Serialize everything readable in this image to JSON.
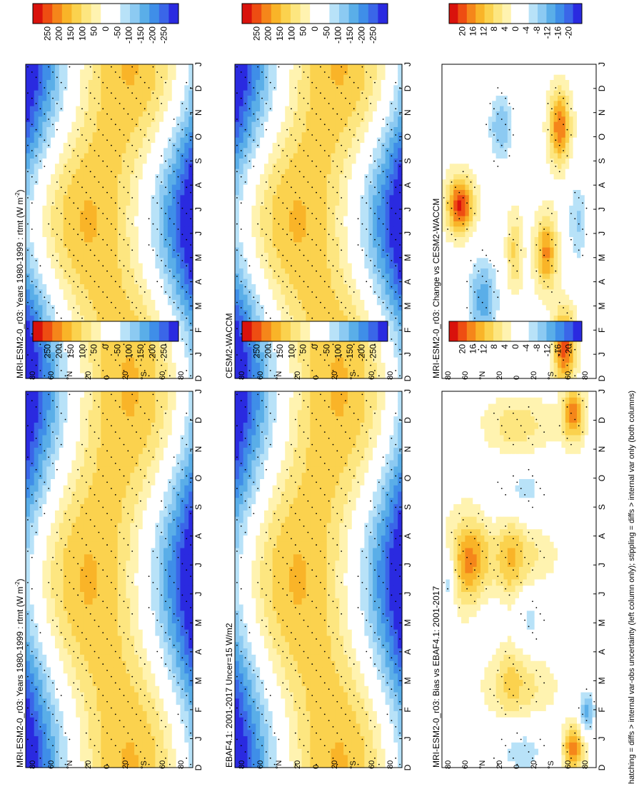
{
  "footer_note": "hatching = diffs > internal var-obs uncertainty (left column only); stippling = diffs > internal var only (both columns)",
  "colors": {
    "full_scale": [
      "#2a2ae0",
      "#3a66e8",
      "#3f8ee8",
      "#5aaee8",
      "#8ccaf2",
      "#b8e2f8",
      "#ffffff",
      "#ffffff",
      "#fff3b0",
      "#fde680",
      "#fbd24e",
      "#f9b428",
      "#f5861a",
      "#ee4d12",
      "#d9120c"
    ],
    "delta_scale": [
      "#2a2ae0",
      "#3a66e8",
      "#3f8ee8",
      "#5aaee8",
      "#8ccaf2",
      "#b8e2f8",
      "#ffffff",
      "#ffffff",
      "#fff3b0",
      "#fde680",
      "#fbd24e",
      "#f9b428",
      "#f5861a",
      "#ee4d12",
      "#d9120c"
    ]
  },
  "axis_labels": {
    "months": [
      "D",
      "J",
      "F",
      "M",
      "A",
      "M",
      "J",
      "J",
      "A",
      "S",
      "O",
      "N",
      "D",
      "J"
    ],
    "latitudes": [
      "80",
      "60",
      "°N",
      "20",
      "0",
      "20",
      "°S",
      "60",
      "80"
    ]
  },
  "chart_data": [
    {
      "type": "heatmap",
      "title": "MRI-ESM2-0_r03: Years 1980-1999 : rtmt (W m",
      "title_sup": "-2",
      "title_end": ")",
      "x": [
        "D",
        "J",
        "F",
        "M",
        "A",
        "M",
        "J",
        "J",
        "A",
        "S",
        "O",
        "N",
        "D",
        "J"
      ],
      "y": [
        "80",
        "60",
        "°N",
        "20",
        "0",
        "20",
        "°S",
        "60",
        "80"
      ],
      "colorbar": [
        "250",
        "200",
        "150",
        "100",
        "50",
        "0",
        "-50",
        "-100",
        "-150",
        "-200",
        "-250"
      ],
      "zlim": [
        -275,
        275
      ],
      "model": "full"
    },
    {
      "type": "heatmap",
      "title": "EBAF4.1: 2001-2017 Uncer=15 W/m2",
      "x": [
        "D",
        "J",
        "F",
        "M",
        "A",
        "M",
        "J",
        "J",
        "A",
        "S",
        "O",
        "N",
        "D",
        "J"
      ],
      "y": [
        "80",
        "60",
        "°N",
        "20",
        "0",
        "20",
        "°S",
        "60",
        "80"
      ],
      "colorbar": [
        "250",
        "200",
        "150",
        "100",
        "50",
        "0",
        "-50",
        "-100",
        "-150",
        "-200",
        "-250"
      ],
      "zlim": [
        -275,
        275
      ],
      "model": "full"
    },
    {
      "type": "heatmap",
      "title": "MRI-ESM2-0_r03: Bias vs EBAF4.1: 2001-2017",
      "x": [
        "D",
        "J",
        "F",
        "M",
        "A",
        "M",
        "J",
        "J",
        "A",
        "S",
        "O",
        "N",
        "D",
        "J"
      ],
      "y": [
        "80",
        "60",
        "°N",
        "20",
        "0",
        "20",
        "°S",
        "60",
        "80"
      ],
      "colorbar": [
        "20",
        "16",
        "12",
        "8",
        "4",
        "0",
        "-4",
        "-8",
        "-12",
        "-16",
        "-20"
      ],
      "zlim": [
        -22,
        22
      ],
      "model": "bias"
    },
    {
      "type": "heatmap",
      "title": "MRI-ESM2-0_r03: Years 1980-1999 : rtmt (W m",
      "title_sup": "-2",
      "title_end": ")",
      "x": [
        "D",
        "J",
        "F",
        "M",
        "A",
        "M",
        "J",
        "J",
        "A",
        "S",
        "O",
        "N",
        "D",
        "J"
      ],
      "y": [
        "80",
        "60",
        "°N",
        "20",
        "0",
        "20",
        "°S",
        "60",
        "80"
      ],
      "colorbar": [
        "250",
        "200",
        "150",
        "100",
        "50",
        "0",
        "-50",
        "-100",
        "-150",
        "-200",
        "-250"
      ],
      "zlim": [
        -275,
        275
      ],
      "model": "full"
    },
    {
      "type": "heatmap",
      "title": "CESM2-WACCM",
      "x": [
        "D",
        "J",
        "F",
        "M",
        "A",
        "M",
        "J",
        "J",
        "A",
        "S",
        "O",
        "N",
        "D",
        "J"
      ],
      "y": [
        "80",
        "60",
        "°N",
        "20",
        "0",
        "20",
        "°S",
        "60",
        "80"
      ],
      "colorbar": [
        "250",
        "200",
        "150",
        "100",
        "50",
        "0",
        "-50",
        "-100",
        "-150",
        "-200",
        "-250"
      ],
      "zlim": [
        -275,
        275
      ],
      "model": "full"
    },
    {
      "type": "heatmap",
      "title": "MRI-ESM2-0_r03: Change vs CESM2-WACCM",
      "x": [
        "D",
        "J",
        "F",
        "M",
        "A",
        "M",
        "J",
        "J",
        "A",
        "S",
        "O",
        "N",
        "D",
        "J"
      ],
      "y": [
        "80",
        "60",
        "°N",
        "20",
        "0",
        "20",
        "°S",
        "60",
        "80"
      ],
      "colorbar": [
        "20",
        "16",
        "12",
        "8",
        "4",
        "0",
        "-4",
        "-8",
        "-12",
        "-16",
        "-20"
      ],
      "zlim": [
        -22,
        22
      ],
      "model": "change"
    }
  ]
}
